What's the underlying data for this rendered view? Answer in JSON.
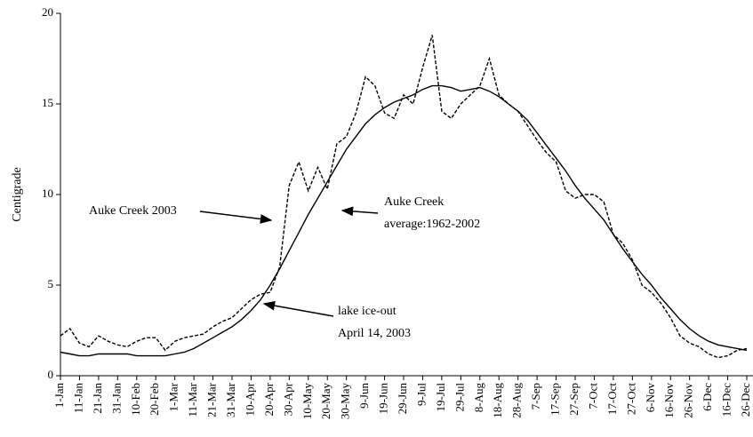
{
  "chart_data": {
    "type": "line",
    "y_label": "Centigrade",
    "categories": [
      "1-Jan",
      null,
      "11-Jan",
      null,
      "21-Jan",
      null,
      "31-Jan",
      null,
      "10-Feb",
      null,
      "20-Feb",
      null,
      "1-Mar",
      null,
      "11-Mar",
      null,
      "21-Mar",
      null,
      "31-Mar",
      null,
      "10-Apr",
      null,
      "20-Apr",
      null,
      "30-Apr",
      null,
      "10-May",
      null,
      "20-May",
      null,
      "30-May",
      null,
      "9-Jun",
      null,
      "19-Jun",
      null,
      "29-Jun",
      null,
      "9-Jul",
      null,
      "19-Jul",
      null,
      "29-Jul",
      null,
      "8-Aug",
      null,
      "18-Aug",
      null,
      "28-Aug",
      null,
      "7-Sep",
      null,
      "17-Sep",
      null,
      "27-Sep",
      null,
      "7-Oct",
      null,
      "17-Oct",
      null,
      "27-Oct",
      null,
      "6-Nov",
      null,
      "16-Nov",
      null,
      "26-Nov",
      null,
      "6-Dec",
      null,
      "16-Dec",
      null,
      "26-Dec"
    ],
    "series": [
      {
        "color": "#000000",
        "style": "solid",
        "values": [
          1.3,
          1.2,
          1.1,
          1.1,
          1.2,
          1.2,
          1.2,
          1.2,
          1.1,
          1.1,
          1.1,
          1.1,
          1.2,
          1.3,
          1.5,
          1.8,
          2.1,
          2.4,
          2.7,
          3.1,
          3.6,
          4.2,
          5.0,
          5.9,
          6.9,
          7.9,
          8.9,
          9.8,
          10.7,
          11.6,
          12.5,
          13.2,
          13.9,
          14.4,
          14.8,
          15.1,
          15.3,
          15.5,
          15.8,
          16.0,
          16.0,
          15.9,
          15.7,
          15.8,
          15.9,
          15.7,
          15.4,
          15.0,
          14.6,
          14.1,
          13.4,
          12.7,
          12.0,
          11.3,
          10.5,
          9.8,
          9.2,
          8.6,
          7.8,
          7.0,
          6.3,
          5.6,
          5.0,
          4.3,
          3.7,
          3.1,
          2.6,
          2.2,
          1.9,
          1.7,
          1.6,
          1.5,
          1.4
        ]
      },
      {
        "color": "#000000",
        "style": "dashed",
        "values": [
          2.2,
          2.6,
          1.8,
          1.6,
          2.2,
          1.9,
          1.7,
          1.6,
          1.9,
          2.1,
          2.1,
          1.4,
          1.9,
          2.1,
          2.2,
          2.3,
          2.7,
          3.0,
          3.2,
          3.7,
          4.2,
          4.5,
          4.6,
          6.0,
          10.5,
          11.8,
          10.2,
          11.5,
          10.3,
          12.8,
          13.2,
          14.5,
          16.5,
          16.0,
          14.5,
          14.2,
          15.5,
          15.0,
          17.0,
          18.8,
          14.6,
          14.2,
          15.0,
          15.5,
          16.0,
          17.5,
          15.5,
          15.0,
          14.6,
          13.8,
          13.0,
          12.3,
          11.8,
          10.2,
          9.8,
          10.0,
          10.0,
          9.6,
          7.8,
          7.3,
          6.4,
          5.0,
          4.6,
          4.0,
          3.2,
          2.2,
          1.8,
          1.6,
          1.2,
          1.0,
          1.1,
          1.4,
          1.5
        ]
      }
    ],
    "annotations": [
      {
        "lines": [
          "Auke Creek 2003"
        ]
      },
      {
        "lines": [
          "Auke Creek",
          "average:1962-2002"
        ]
      },
      {
        "lines": [
          "lake ice-out",
          "April 14, 2003"
        ]
      }
    ],
    "ylim": [
      0,
      20
    ],
    "yticks": [
      0,
      5,
      10,
      15,
      20
    ],
    "grid": false
  }
}
